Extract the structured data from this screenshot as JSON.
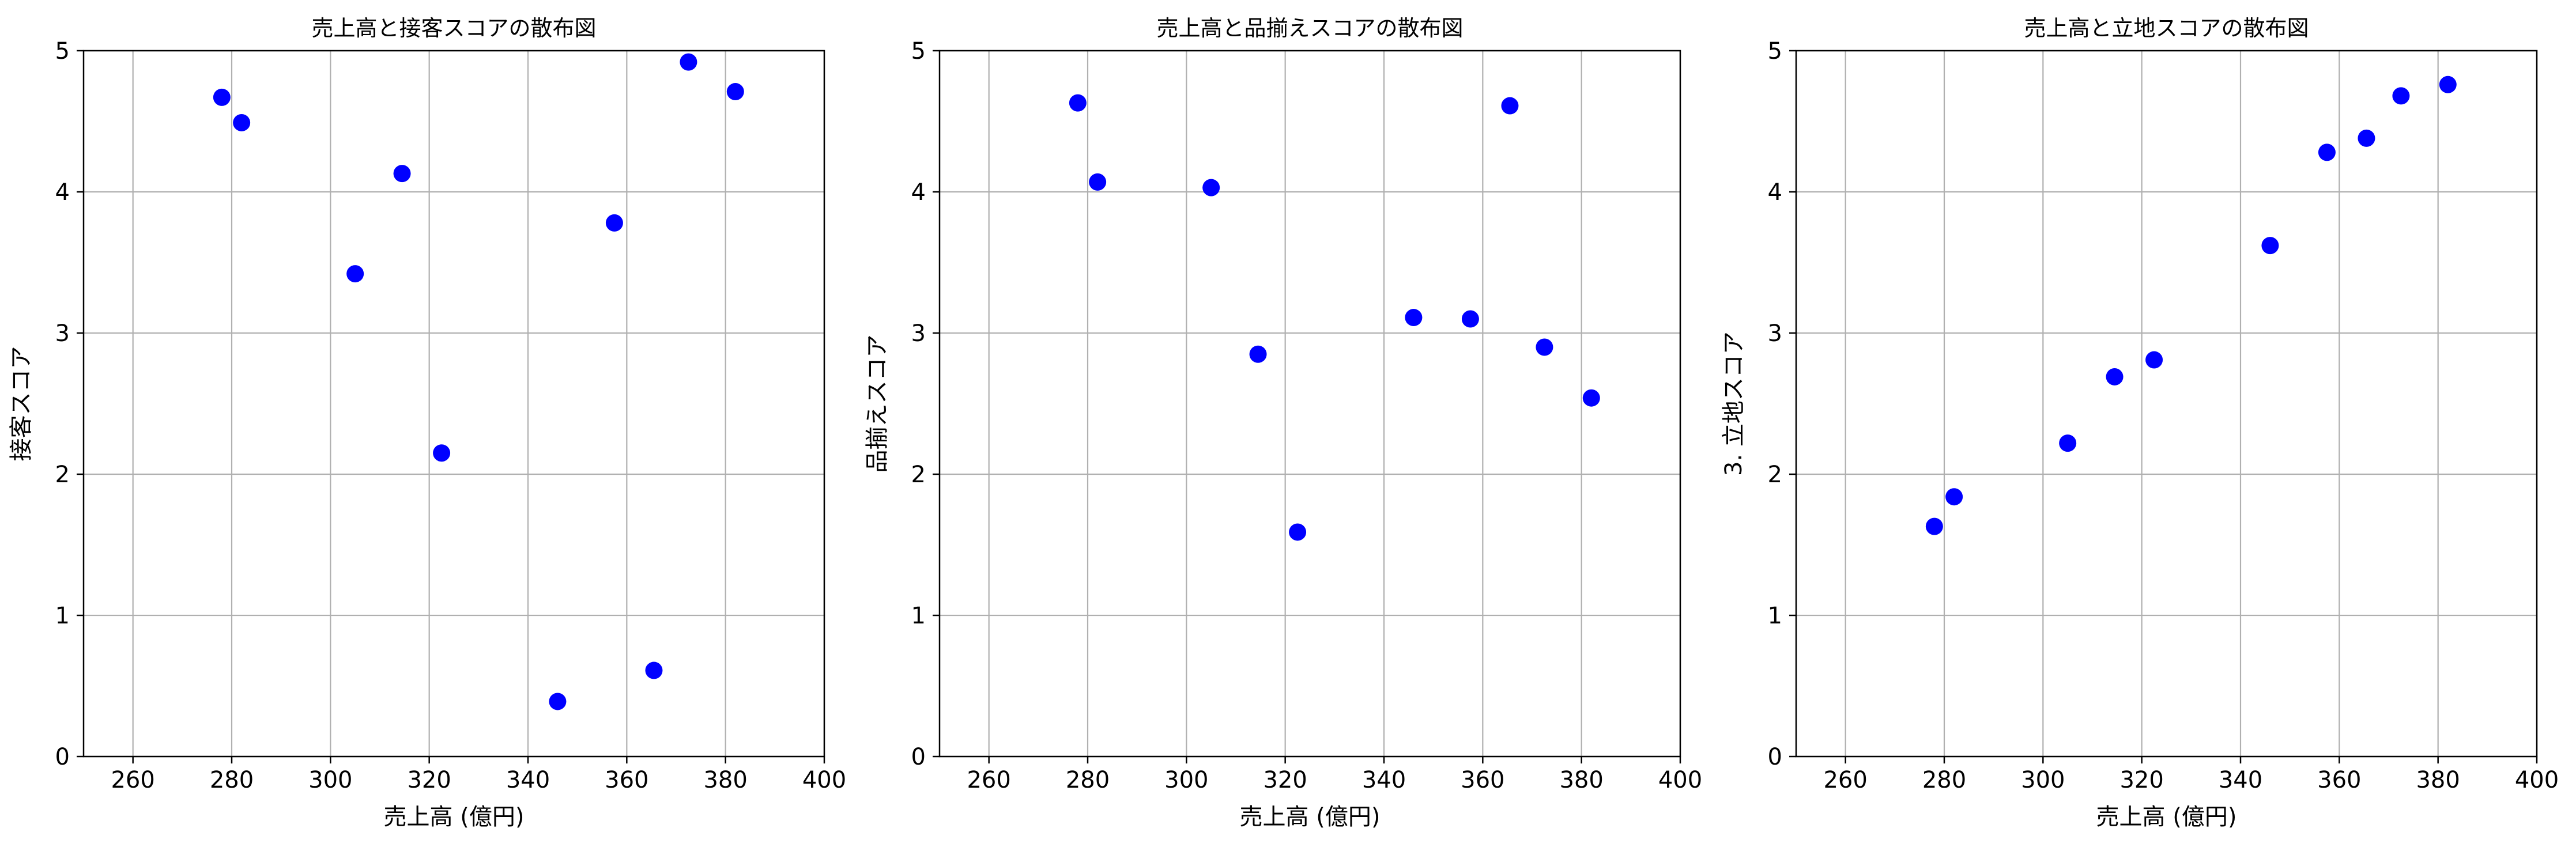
{
  "chart_data": [
    {
      "type": "scatter",
      "title": "売上高と接客スコアの散布図",
      "xlabel": "売上高 (億円)",
      "ylabel": "接客スコア",
      "xlim": [
        250,
        400
      ],
      "ylim": [
        0,
        5
      ],
      "xticks": [
        260,
        280,
        300,
        320,
        340,
        360,
        380,
        400
      ],
      "yticks": [
        0,
        1,
        2,
        3,
        4,
        5
      ],
      "grid": true,
      "color": "#0000ff",
      "points": [
        {
          "x": 278,
          "y": 4.67
        },
        {
          "x": 282,
          "y": 4.49
        },
        {
          "x": 305,
          "y": 3.42
        },
        {
          "x": 314.5,
          "y": 4.13
        },
        {
          "x": 322.5,
          "y": 2.15
        },
        {
          "x": 346,
          "y": 0.39
        },
        {
          "x": 357.5,
          "y": 3.78
        },
        {
          "x": 365.5,
          "y": 0.61
        },
        {
          "x": 372.5,
          "y": 4.92
        },
        {
          "x": 382,
          "y": 4.71
        }
      ]
    },
    {
      "type": "scatter",
      "title": "売上高と品揃えスコアの散布図",
      "xlabel": "売上高 (億円)",
      "ylabel": "品揃えスコア",
      "xlim": [
        250,
        400
      ],
      "ylim": [
        0,
        5
      ],
      "xticks": [
        260,
        280,
        300,
        320,
        340,
        360,
        380,
        400
      ],
      "yticks": [
        0,
        1,
        2,
        3,
        4,
        5
      ],
      "grid": true,
      "color": "#0000ff",
      "points": [
        {
          "x": 278,
          "y": 4.63
        },
        {
          "x": 282,
          "y": 4.07
        },
        {
          "x": 305,
          "y": 4.03
        },
        {
          "x": 314.5,
          "y": 2.85
        },
        {
          "x": 322.5,
          "y": 1.59
        },
        {
          "x": 346,
          "y": 3.11
        },
        {
          "x": 357.5,
          "y": 3.1
        },
        {
          "x": 365.5,
          "y": 4.61
        },
        {
          "x": 372.5,
          "y": 2.9
        },
        {
          "x": 382,
          "y": 2.54
        }
      ]
    },
    {
      "type": "scatter",
      "title": "売上高と立地スコアの散布図",
      "xlabel": "売上高 (億円)",
      "ylabel": "3. 立地スコア",
      "xlim": [
        250,
        400
      ],
      "ylim": [
        0,
        5
      ],
      "xticks": [
        260,
        280,
        300,
        320,
        340,
        360,
        380,
        400
      ],
      "yticks": [
        0,
        1,
        2,
        3,
        4,
        5
      ],
      "grid": true,
      "color": "#0000ff",
      "points": [
        {
          "x": 278,
          "y": 1.63
        },
        {
          "x": 282,
          "y": 1.84
        },
        {
          "x": 305,
          "y": 2.22
        },
        {
          "x": 314.5,
          "y": 2.69
        },
        {
          "x": 322.5,
          "y": 2.81
        },
        {
          "x": 346,
          "y": 3.62
        },
        {
          "x": 357.5,
          "y": 4.28
        },
        {
          "x": 365.5,
          "y": 4.38
        },
        {
          "x": 372.5,
          "y": 4.68
        },
        {
          "x": 382,
          "y": 4.76
        }
      ]
    }
  ]
}
